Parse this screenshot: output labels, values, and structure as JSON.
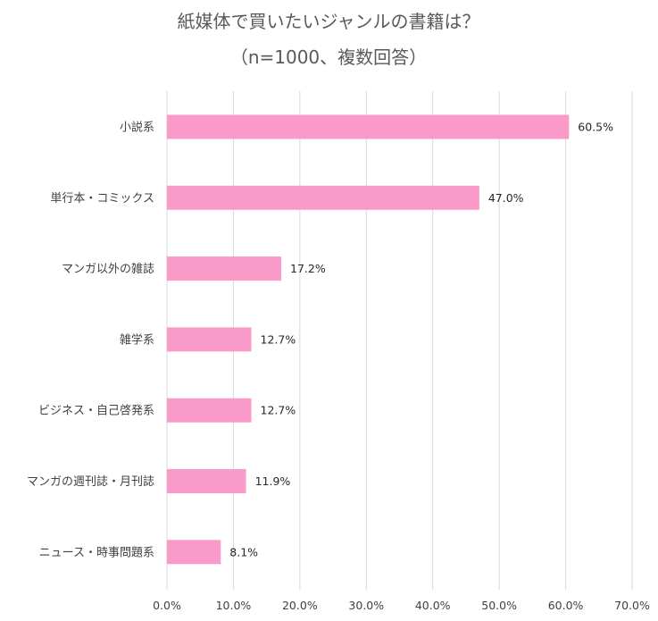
{
  "chart_data": {
    "type": "bar",
    "orientation": "horizontal",
    "title": "紙媒体で買いたいジャンルの書籍は？",
    "subtitle": "（n=1000、複数回答）",
    "categories": [
      "小説系",
      "単行本・コミックス",
      "マンガ以外の雑誌",
      "雑学系",
      "ビジネス・自己啓発系",
      "マンガの週刊誌・月刊誌",
      "ニュース・時事問題系"
    ],
    "values": [
      60.5,
      47.0,
      17.2,
      12.7,
      12.7,
      11.9,
      8.1
    ],
    "data_labels": [
      "60.5%",
      "47.0%",
      "17.2%",
      "12.7%",
      "12.7%",
      "11.9%",
      "8.1%"
    ],
    "xlim": [
      0,
      70
    ],
    "ticks": [
      0,
      10,
      20,
      30,
      40,
      50,
      60,
      70
    ],
    "tick_labels": [
      "0.0%",
      "10.0%",
      "20.0%",
      "30.0%",
      "40.0%",
      "50.0%",
      "60.0%",
      "70.0%"
    ],
    "xlabel": "",
    "ylabel": "",
    "grid": true,
    "legend": "none",
    "bar_color": "#fa9ac8",
    "grid_color": "#d9d9d9"
  }
}
